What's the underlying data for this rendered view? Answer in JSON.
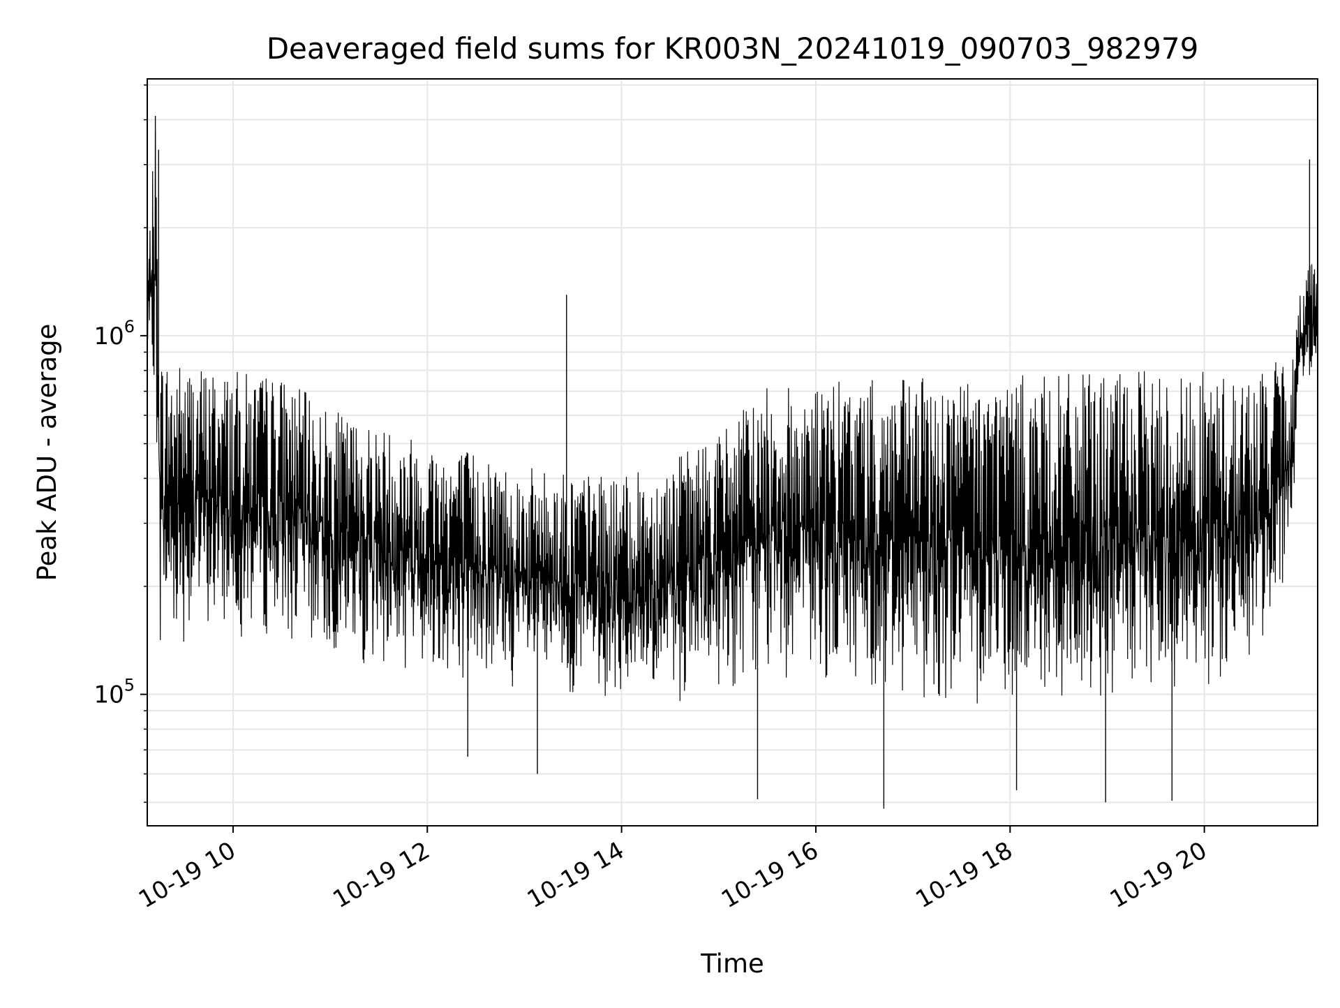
{
  "chart_data": {
    "type": "line",
    "title": "Deaveraged field sums for KR003N_20241019_090703_982979",
    "xlabel": "Time",
    "ylabel": "Peak ADU - average",
    "x_axis": {
      "scale": "time",
      "start": "2024-10-19 09:07",
      "end": "2024-10-19 21:10",
      "ticks": [
        {
          "time": "2024-10-19 10:00",
          "label": "10-19 10"
        },
        {
          "time": "2024-10-19 12:00",
          "label": "10-19 12"
        },
        {
          "time": "2024-10-19 14:00",
          "label": "10-19 14"
        },
        {
          "time": "2024-10-19 16:00",
          "label": "10-19 16"
        },
        {
          "time": "2024-10-19 18:00",
          "label": "10-19 18"
        },
        {
          "time": "2024-10-19 20:00",
          "label": "10-19 20"
        }
      ]
    },
    "y_axis": {
      "scale": "log",
      "ylim": [
        43000,
        5200000
      ],
      "ticks": [
        {
          "value": 100000,
          "base": "10",
          "exp": "5"
        },
        {
          "value": 1000000,
          "base": "10",
          "exp": "6"
        }
      ]
    },
    "grid": true,
    "legend": "none",
    "colors": {
      "line": "#000000",
      "grid": "#e6e6e6",
      "frame": "#000000"
    },
    "series": [
      {
        "envelope": [
          {
            "time": "2024-10-19 09:07",
            "low": 850000,
            "high": 1500000
          },
          {
            "time": "2024-10-19 09:12",
            "low": 700000,
            "high": 4000000
          },
          {
            "time": "2024-10-19 09:15",
            "low": 130000,
            "high": 900000
          },
          {
            "time": "2024-10-19 09:30",
            "low": 140000,
            "high": 850000
          },
          {
            "time": "2024-10-19 10:00",
            "low": 145000,
            "high": 800000
          },
          {
            "time": "2024-10-19 10:30",
            "low": 140000,
            "high": 780000
          },
          {
            "time": "2024-10-19 11:00",
            "low": 125000,
            "high": 620000
          },
          {
            "time": "2024-10-19 11:30",
            "low": 115000,
            "high": 570000
          },
          {
            "time": "2024-10-19 12:00",
            "low": 115000,
            "high": 520000
          },
          {
            "time": "2024-10-19 12:30",
            "low": 108000,
            "high": 480000
          },
          {
            "time": "2024-10-19 13:00",
            "low": 100000,
            "high": 430000
          },
          {
            "time": "2024-10-19 13:30",
            "low": 98000,
            "high": 420000
          },
          {
            "time": "2024-10-19 14:00",
            "low": 95000,
            "high": 400000
          },
          {
            "time": "2024-10-19 14:30",
            "low": 92000,
            "high": 450000
          },
          {
            "time": "2024-10-19 15:00",
            "low": 100000,
            "high": 550000
          },
          {
            "time": "2024-10-19 15:30",
            "low": 110000,
            "high": 720000
          },
          {
            "time": "2024-10-19 16:00",
            "low": 105000,
            "high": 740000
          },
          {
            "time": "2024-10-19 16:30",
            "low": 100000,
            "high": 750000
          },
          {
            "time": "2024-10-19 17:00",
            "low": 95000,
            "high": 760000
          },
          {
            "time": "2024-10-19 17:30",
            "low": 95000,
            "high": 770000
          },
          {
            "time": "2024-10-19 18:00",
            "low": 90000,
            "high": 780000
          },
          {
            "time": "2024-10-19 18:30",
            "low": 88000,
            "high": 780000
          },
          {
            "time": "2024-10-19 19:00",
            "low": 90000,
            "high": 790000
          },
          {
            "time": "2024-10-19 19:30",
            "low": 90000,
            "high": 800000
          },
          {
            "time": "2024-10-19 20:00",
            "low": 95000,
            "high": 800000
          },
          {
            "time": "2024-10-19 20:30",
            "low": 110000,
            "high": 780000
          },
          {
            "time": "2024-10-19 20:55",
            "low": 250000,
            "high": 900000
          },
          {
            "time": "2024-10-19 21:00",
            "low": 700000,
            "high": 1500000
          },
          {
            "time": "2024-10-19 21:10",
            "low": 800000,
            "high": 1800000
          }
        ],
        "spikes": [
          {
            "time": "2024-10-19 09:12",
            "value": 4100000
          },
          {
            "time": "2024-10-19 09:14",
            "value": 3300000
          },
          {
            "time": "2024-10-19 13:26",
            "value": 1300000
          },
          {
            "time": "2024-10-19 21:05",
            "value": 3100000
          },
          {
            "time": "2024-10-19 12:25",
            "value": 67000
          },
          {
            "time": "2024-10-19 13:08",
            "value": 60000
          },
          {
            "time": "2024-10-19 15:24",
            "value": 51000
          },
          {
            "time": "2024-10-19 16:42",
            "value": 48000
          },
          {
            "time": "2024-10-19 18:04",
            "value": 54000
          },
          {
            "time": "2024-10-19 18:59",
            "value": 50000
          },
          {
            "time": "2024-10-19 19:40",
            "value": 50500
          }
        ]
      }
    ]
  }
}
